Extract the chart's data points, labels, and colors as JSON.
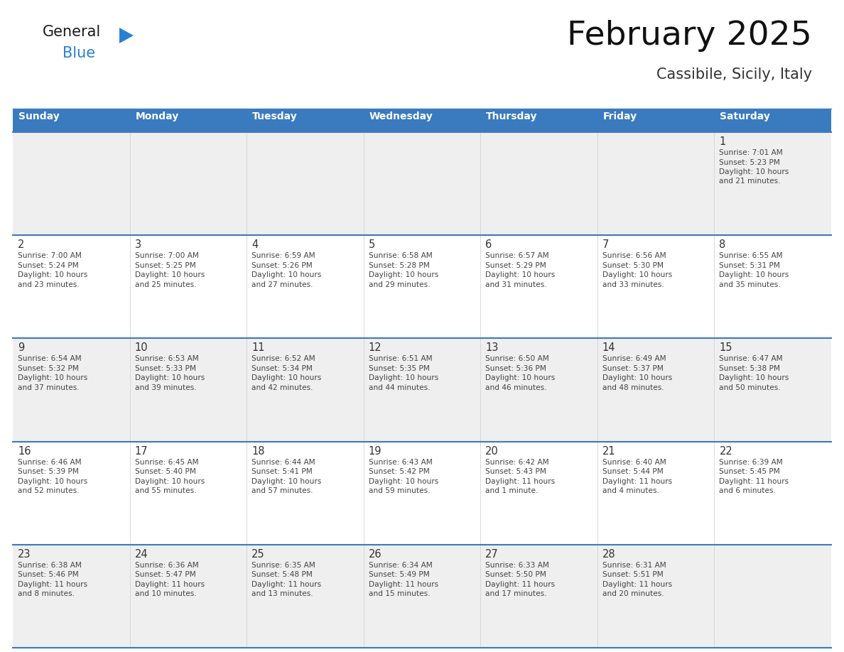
{
  "title": "February 2025",
  "subtitle": "Cassibile, Sicily, Italy",
  "header_bg": "#3a7abf",
  "header_text": "#ffffff",
  "header_days": [
    "Sunday",
    "Monday",
    "Tuesday",
    "Wednesday",
    "Thursday",
    "Friday",
    "Saturday"
  ],
  "row_bg_odd": "#efefef",
  "row_bg_even": "#ffffff",
  "cell_border_color": "#3a7abf",
  "day_number_color": "#333333",
  "info_text_color": "#444444",
  "logo_general_color": "#1a1a1a",
  "logo_blue_color": "#2980d4",
  "logo_triangle_color": "#2980d4",
  "calendar_data": [
    [
      null,
      null,
      null,
      null,
      null,
      null,
      {
        "day": "1",
        "sunrise": "7:01 AM",
        "sunset": "5:23 PM",
        "daylight_line1": "10 hours",
        "daylight_line2": "and 21 minutes."
      }
    ],
    [
      {
        "day": "2",
        "sunrise": "7:00 AM",
        "sunset": "5:24 PM",
        "daylight_line1": "10 hours",
        "daylight_line2": "and 23 minutes."
      },
      {
        "day": "3",
        "sunrise": "7:00 AM",
        "sunset": "5:25 PM",
        "daylight_line1": "10 hours",
        "daylight_line2": "and 25 minutes."
      },
      {
        "day": "4",
        "sunrise": "6:59 AM",
        "sunset": "5:26 PM",
        "daylight_line1": "10 hours",
        "daylight_line2": "and 27 minutes."
      },
      {
        "day": "5",
        "sunrise": "6:58 AM",
        "sunset": "5:28 PM",
        "daylight_line1": "10 hours",
        "daylight_line2": "and 29 minutes."
      },
      {
        "day": "6",
        "sunrise": "6:57 AM",
        "sunset": "5:29 PM",
        "daylight_line1": "10 hours",
        "daylight_line2": "and 31 minutes."
      },
      {
        "day": "7",
        "sunrise": "6:56 AM",
        "sunset": "5:30 PM",
        "daylight_line1": "10 hours",
        "daylight_line2": "and 33 minutes."
      },
      {
        "day": "8",
        "sunrise": "6:55 AM",
        "sunset": "5:31 PM",
        "daylight_line1": "10 hours",
        "daylight_line2": "and 35 minutes."
      }
    ],
    [
      {
        "day": "9",
        "sunrise": "6:54 AM",
        "sunset": "5:32 PM",
        "daylight_line1": "10 hours",
        "daylight_line2": "and 37 minutes."
      },
      {
        "day": "10",
        "sunrise": "6:53 AM",
        "sunset": "5:33 PM",
        "daylight_line1": "10 hours",
        "daylight_line2": "and 39 minutes."
      },
      {
        "day": "11",
        "sunrise": "6:52 AM",
        "sunset": "5:34 PM",
        "daylight_line1": "10 hours",
        "daylight_line2": "and 42 minutes."
      },
      {
        "day": "12",
        "sunrise": "6:51 AM",
        "sunset": "5:35 PM",
        "daylight_line1": "10 hours",
        "daylight_line2": "and 44 minutes."
      },
      {
        "day": "13",
        "sunrise": "6:50 AM",
        "sunset": "5:36 PM",
        "daylight_line1": "10 hours",
        "daylight_line2": "and 46 minutes."
      },
      {
        "day": "14",
        "sunrise": "6:49 AM",
        "sunset": "5:37 PM",
        "daylight_line1": "10 hours",
        "daylight_line2": "and 48 minutes."
      },
      {
        "day": "15",
        "sunrise": "6:47 AM",
        "sunset": "5:38 PM",
        "daylight_line1": "10 hours",
        "daylight_line2": "and 50 minutes."
      }
    ],
    [
      {
        "day": "16",
        "sunrise": "6:46 AM",
        "sunset": "5:39 PM",
        "daylight_line1": "10 hours",
        "daylight_line2": "and 52 minutes."
      },
      {
        "day": "17",
        "sunrise": "6:45 AM",
        "sunset": "5:40 PM",
        "daylight_line1": "10 hours",
        "daylight_line2": "and 55 minutes."
      },
      {
        "day": "18",
        "sunrise": "6:44 AM",
        "sunset": "5:41 PM",
        "daylight_line1": "10 hours",
        "daylight_line2": "and 57 minutes."
      },
      {
        "day": "19",
        "sunrise": "6:43 AM",
        "sunset": "5:42 PM",
        "daylight_line1": "10 hours",
        "daylight_line2": "and 59 minutes."
      },
      {
        "day": "20",
        "sunrise": "6:42 AM",
        "sunset": "5:43 PM",
        "daylight_line1": "11 hours",
        "daylight_line2": "and 1 minute."
      },
      {
        "day": "21",
        "sunrise": "6:40 AM",
        "sunset": "5:44 PM",
        "daylight_line1": "11 hours",
        "daylight_line2": "and 4 minutes."
      },
      {
        "day": "22",
        "sunrise": "6:39 AM",
        "sunset": "5:45 PM",
        "daylight_line1": "11 hours",
        "daylight_line2": "and 6 minutes."
      }
    ],
    [
      {
        "day": "23",
        "sunrise": "6:38 AM",
        "sunset": "5:46 PM",
        "daylight_line1": "11 hours",
        "daylight_line2": "and 8 minutes."
      },
      {
        "day": "24",
        "sunrise": "6:36 AM",
        "sunset": "5:47 PM",
        "daylight_line1": "11 hours",
        "daylight_line2": "and 10 minutes."
      },
      {
        "day": "25",
        "sunrise": "6:35 AM",
        "sunset": "5:48 PM",
        "daylight_line1": "11 hours",
        "daylight_line2": "and 13 minutes."
      },
      {
        "day": "26",
        "sunrise": "6:34 AM",
        "sunset": "5:49 PM",
        "daylight_line1": "11 hours",
        "daylight_line2": "and 15 minutes."
      },
      {
        "day": "27",
        "sunrise": "6:33 AM",
        "sunset": "5:50 PM",
        "daylight_line1": "11 hours",
        "daylight_line2": "and 17 minutes."
      },
      {
        "day": "28",
        "sunrise": "6:31 AM",
        "sunset": "5:51 PM",
        "daylight_line1": "11 hours",
        "daylight_line2": "and 20 minutes."
      },
      null
    ]
  ]
}
